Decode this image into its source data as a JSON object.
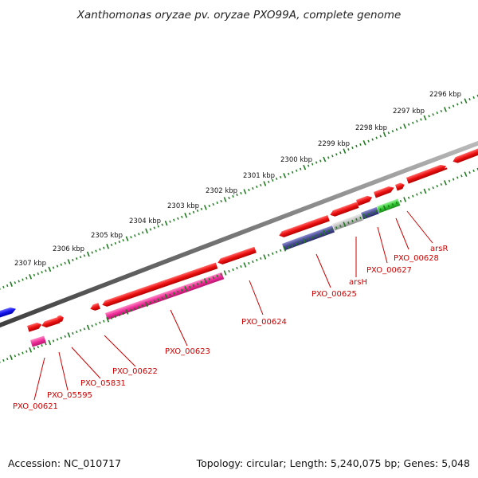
{
  "title": "Xanthomonas oryzae pv. oryzae PXO99A, complete genome",
  "footer": {
    "accession": "Accession: NC_010717",
    "summary": "Topology: circular; Length: 5,240,075 bp; Genes: 5,048"
  },
  "scale_labels": [
    "2296 kbp",
    "2297 kbp",
    "2298 kbp",
    "2299 kbp",
    "2300 kbp",
    "2301 kbp",
    "2302 kbp",
    "2303 kbp",
    "2304 kbp",
    "2305 kbp",
    "2306 kbp",
    "2307 kbp"
  ],
  "gene_labels": [
    "arsR",
    "PXO_00628",
    "PXO_00627",
    "arsH",
    "PXO_00625",
    "PXO_00624",
    "PXO_00623",
    "PXO_00622",
    "PXO_05831",
    "PXO_05595",
    "PXO_00621"
  ],
  "colors": {
    "backbone": "#777777",
    "ticks": "#1f7a1f",
    "gene_red": "#ee1111",
    "gene_blue": "#1515ee",
    "magenta": "#ee2e9a",
    "slate": "#4a4a94",
    "gray": "#c0c0c0",
    "green": "#33cc33",
    "label_red": "#cc0000"
  }
}
